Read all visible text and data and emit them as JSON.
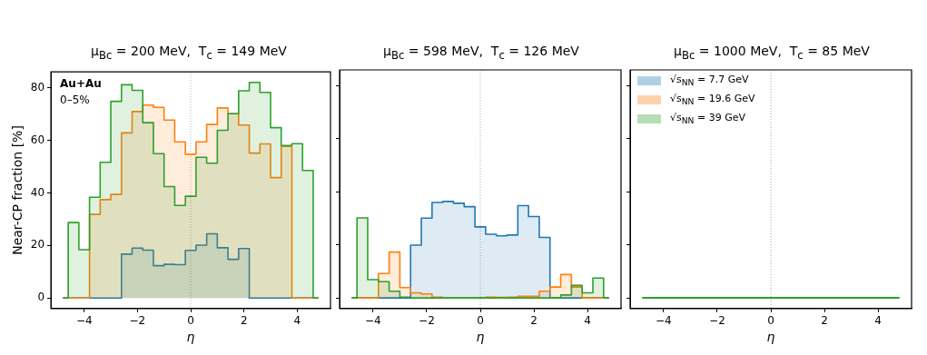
{
  "chart_data": [
    {
      "type": "histogram",
      "title": "μ$_{Bc}$ = 200 MeV,  T$_{c}$ = 149 MeV",
      "xlabel": "η",
      "ylabel": "Near-CP fraction [%]",
      "bins": [
        -4.8,
        -4.6,
        -4.2,
        -3.8,
        -3.4,
        -3.0,
        -2.6,
        -2.2,
        -1.8,
        -1.4,
        -1.0,
        -0.6,
        -0.2,
        0.2,
        0.6,
        1.0,
        1.4,
        1.8,
        2.2,
        2.6,
        3.0,
        3.4,
        3.8,
        4.2,
        4.6,
        4.8
      ],
      "series": [
        {
          "color": "#1f77b4",
          "values": [
            0,
            0,
            0,
            0,
            0,
            0,
            16.7,
            19.0,
            18.2,
            12.3,
            12.8,
            12.7,
            18.1,
            20.1,
            24.4,
            19.1,
            14.7,
            18.8,
            0,
            0,
            0,
            0,
            0,
            0,
            0
          ]
        },
        {
          "color": "#ff7f0e",
          "values": [
            0,
            0,
            0,
            31.8,
            37.4,
            39.4,
            62.8,
            70.9,
            73.4,
            72.5,
            67.7,
            59.4,
            54.7,
            59.4,
            66.0,
            72.3,
            70.1,
            65.8,
            55.1,
            58.6,
            45.8,
            57.7,
            0,
            0,
            0
          ]
        },
        {
          "color": "#2ca02c",
          "values": [
            0,
            28.7,
            18.4,
            38.3,
            51.6,
            74.8,
            81.1,
            79.0,
            66.7,
            54.9,
            42.4,
            35.2,
            38.7,
            53.5,
            51.3,
            63.8,
            70.1,
            78.8,
            82.0,
            78.2,
            64.8,
            58.0,
            58.7,
            48.5,
            0
          ]
        }
      ],
      "xlim": [
        -5.25,
        5.25
      ],
      "ylim": [
        -4,
        86
      ],
      "xticks": [
        -4,
        -2,
        0,
        2,
        4
      ],
      "yticks": [
        0,
        20,
        40,
        60,
        80
      ],
      "ref_lines": [
        {
          "axis": "x",
          "value": 0,
          "color": "#aaaaaa",
          "line_style": "dotted"
        }
      ],
      "annotations": [
        "Au+Au",
        "0–5%"
      ],
      "legend": false
    },
    {
      "type": "histogram",
      "title": "μ$_{Bc}$ = 598 MeV,  T$_{c}$ = 126 MeV",
      "xlabel": "η",
      "bins": [
        -4.8,
        -4.6,
        -4.2,
        -3.8,
        -3.4,
        -3.0,
        -2.6,
        -2.2,
        -1.8,
        -1.4,
        -1.0,
        -0.6,
        -0.2,
        0.2,
        0.6,
        1.0,
        1.4,
        1.8,
        2.2,
        2.6,
        3.0,
        3.4,
        3.8,
        4.2,
        4.6,
        4.8
      ],
      "series": [
        {
          "color": "#1f77b4",
          "values": [
            0,
            0,
            0,
            0,
            0,
            0,
            19.9,
            30.1,
            36.0,
            36.4,
            35.7,
            34.4,
            26.8,
            24.0,
            23.4,
            23.7,
            34.8,
            30.7,
            22.8,
            0,
            0,
            0,
            0,
            0,
            0
          ]
        },
        {
          "color": "#ff7f0e",
          "values": [
            0,
            0,
            0,
            9.2,
            17.3,
            3.9,
            1.9,
            1.5,
            0.3,
            0,
            0,
            0,
            0,
            0.3,
            0.2,
            0.3,
            0.6,
            0.6,
            2.5,
            4.1,
            8.8,
            4.1,
            0,
            0,
            0
          ]
        },
        {
          "color": "#2ca02c",
          "values": [
            0,
            30.2,
            6.9,
            6.1,
            2.5,
            0.3,
            0,
            0,
            0,
            0,
            0,
            0,
            0,
            0,
            0,
            0,
            0,
            0,
            0,
            0,
            1.1,
            4.7,
            1.9,
            7.5,
            0
          ]
        }
      ],
      "xlim": [
        -5.25,
        5.25
      ],
      "ylim": [
        -4,
        86
      ],
      "xticks": [
        -4,
        -2,
        0,
        2,
        4
      ],
      "yticks": [
        0,
        20,
        40,
        60,
        80
      ],
      "ref_lines": [
        {
          "axis": "x",
          "value": 0,
          "color": "#aaaaaa",
          "line_style": "dotted"
        }
      ],
      "legend": false,
      "tick_labels": "x"
    },
    {
      "type": "line",
      "title": "μ$_{Bc}$ = 1000 MeV,  T$_{c}$ = 85 MeV",
      "xlabel": "η",
      "x": [
        -4.8,
        4.8
      ],
      "series": [
        {
          "name": "√s$_{NN}$ = 7.7 GeV",
          "color": "#1f77b4",
          "values": [
            null,
            null
          ]
        },
        {
          "name": "√s$_{NN}$ = 19.6 GeV",
          "color": "#ff7f0e",
          "values": [
            null,
            null
          ]
        },
        {
          "name": "√s$_{NN}$ = 39 GeV",
          "color": "#2ca02c",
          "values": [
            0,
            0
          ]
        }
      ],
      "xlim": [
        -5.25,
        5.25
      ],
      "ylim": [
        -4,
        86
      ],
      "xticks": [
        -4,
        -2,
        0,
        2,
        4
      ],
      "yticks": [
        0,
        20,
        40,
        60,
        80
      ],
      "ref_lines": [
        {
          "axis": "x",
          "value": 0,
          "color": "#aaaaaa",
          "line_style": "dotted"
        }
      ],
      "legend": "top left",
      "tick_labels": "x"
    }
  ]
}
